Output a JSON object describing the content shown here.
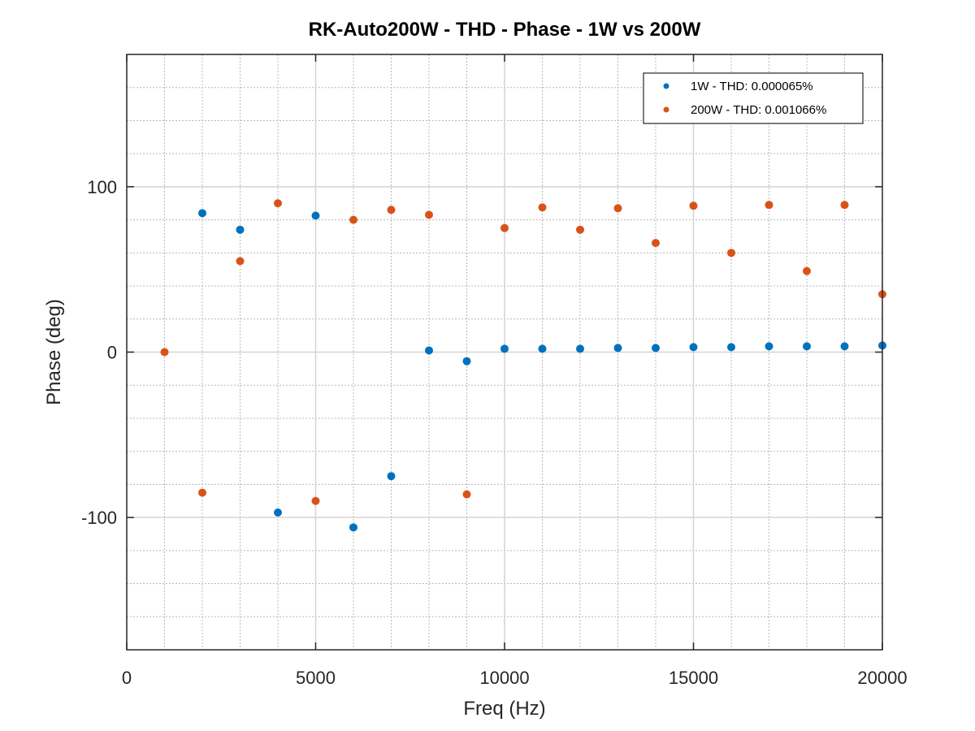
{
  "chart_data": {
    "type": "scatter",
    "title": "RK-Auto200W - THD - Phase - 1W vs 200W",
    "xlabel": "Freq (Hz)",
    "ylabel": "Phase (deg)",
    "xlim": [
      0,
      20000
    ],
    "ylim": [
      -180,
      180
    ],
    "xticks": [
      0,
      5000,
      10000,
      15000,
      20000
    ],
    "yticks": [
      -100,
      0,
      100
    ],
    "xtick_labels": [
      "0",
      "5000",
      "10000",
      "15000",
      "20000"
    ],
    "ytick_labels": [
      "-100",
      "0",
      "100"
    ],
    "grid": true,
    "minor_grid": true,
    "legend_position": "top-right",
    "series": [
      {
        "name": "1W - THD: 0.000065%",
        "color": "#0072bd",
        "x": [
          2000,
          3000,
          4000,
          5000,
          6000,
          7000,
          8000,
          9000,
          10000,
          11000,
          12000,
          13000,
          14000,
          15000,
          16000,
          17000,
          18000,
          19000,
          20000
        ],
        "y": [
          84,
          74,
          -97,
          82.5,
          -106,
          -75,
          1,
          -5.5,
          2,
          2,
          2,
          2.5,
          2.5,
          3,
          3,
          3.5,
          3.5,
          3.5,
          4
        ]
      },
      {
        "name": "200W - THD: 0.001066%",
        "color": "#d95319",
        "x": [
          1000,
          2000,
          3000,
          4000,
          5000,
          6000,
          7000,
          8000,
          9000,
          10000,
          11000,
          12000,
          13000,
          14000,
          15000,
          16000,
          17000,
          18000,
          19000,
          20000
        ],
        "y": [
          0,
          -85,
          55,
          90,
          -90,
          80,
          86,
          83,
          -86,
          75,
          87.5,
          74,
          87,
          66,
          88.5,
          60,
          89,
          49,
          89,
          35
        ]
      }
    ]
  }
}
